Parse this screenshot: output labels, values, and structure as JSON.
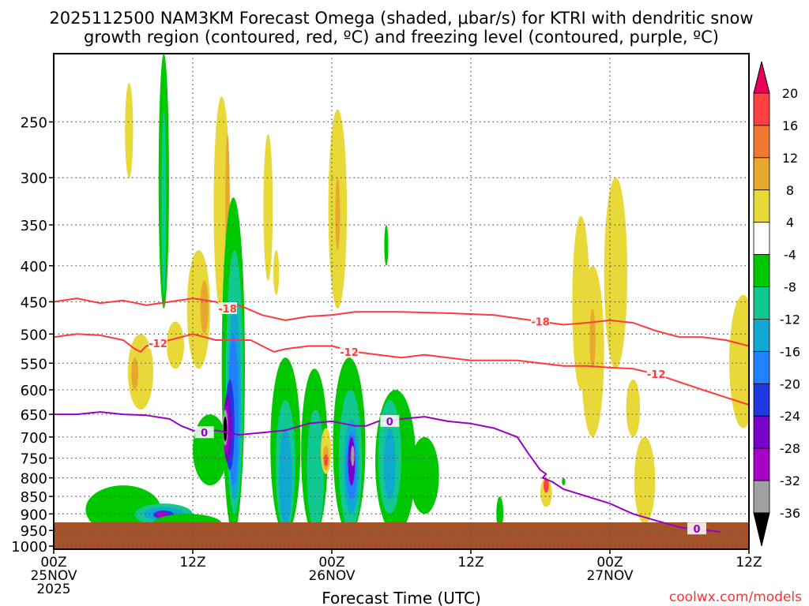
{
  "chart_data": {
    "type": "heatmap",
    "title_line1": "2025112500 NAM3KM Forecast Omega (shaded, μbar/s) for KTRI with dendritic snow",
    "title_line2": "growth region (contoured, red, ºC) and freezing level (contoured, purple, ºC)",
    "xlabel": "Forecast Time (UTC)",
    "credit": "coolwx.com/models",
    "x_range_hours": [
      0,
      60
    ],
    "y_range_hpa": [
      200,
      1010
    ],
    "y_ticks": [
      250,
      300,
      350,
      400,
      450,
      500,
      550,
      600,
      650,
      700,
      750,
      800,
      850,
      900,
      950,
      1000
    ],
    "x_ticks": [
      {
        "hour": 0,
        "l1": "00Z",
        "l2": "25NOV",
        "l3": "2025"
      },
      {
        "hour": 12,
        "l1": "12Z",
        "l2": "",
        "l3": ""
      },
      {
        "hour": 24,
        "l1": "00Z",
        "l2": "26NOV",
        "l3": ""
      },
      {
        "hour": 36,
        "l1": "12Z",
        "l2": "",
        "l3": ""
      },
      {
        "hour": 48,
        "l1": "00Z",
        "l2": "27NOV",
        "l3": ""
      },
      {
        "hour": 60,
        "l1": "12Z",
        "l2": "",
        "l3": ""
      }
    ],
    "colorbar": {
      "labels": [
        "20",
        "16",
        "12",
        "8",
        "4",
        "-4",
        "-8",
        "-12",
        "-16",
        "-20",
        "-24",
        "-28",
        "-32",
        "-36"
      ],
      "colors_top_to_bottom": [
        "#e8005a",
        "#ff4040",
        "#f07830",
        "#e8a830",
        "#e8d838",
        "#ffffff",
        "#00c800",
        "#10c890",
        "#10a8d0",
        "#2080ff",
        "#2038e0",
        "#7800c8",
        "#a800c8",
        "#a0a0a0",
        "#000000"
      ]
    },
    "omega_cells": [
      {
        "h": 6.5,
        "p1": 220,
        "p2": 300,
        "w": 0.7,
        "c": "#e8d838"
      },
      {
        "h": 9.5,
        "p1": 200,
        "p2": 460,
        "w": 0.9,
        "c": "#00c800"
      },
      {
        "h": 9.5,
        "p1": 240,
        "p2": 440,
        "w": 0.4,
        "c": "#10c890"
      },
      {
        "h": 7.5,
        "p1": 500,
        "p2": 640,
        "w": 2.2,
        "c": "#e8d838"
      },
      {
        "h": 7.0,
        "p1": 540,
        "p2": 600,
        "w": 0.6,
        "c": "#e8a830"
      },
      {
        "h": 10.5,
        "p1": 480,
        "p2": 560,
        "w": 1.5,
        "c": "#e8d838"
      },
      {
        "h": 12.5,
        "p1": 380,
        "p2": 560,
        "w": 2.0,
        "c": "#e8d838"
      },
      {
        "h": 13.0,
        "p1": 420,
        "p2": 500,
        "w": 0.7,
        "c": "#e8a830"
      },
      {
        "h": 14.5,
        "p1": 230,
        "p2": 470,
        "w": 1.4,
        "c": "#e8d838"
      },
      {
        "h": 15.0,
        "p1": 260,
        "p2": 440,
        "w": 0.4,
        "c": "#e8a830"
      },
      {
        "h": 18.5,
        "p1": 260,
        "p2": 420,
        "w": 0.8,
        "c": "#e8d838"
      },
      {
        "h": 19.2,
        "p1": 380,
        "p2": 440,
        "w": 0.5,
        "c": "#e8d838"
      },
      {
        "h": 13.5,
        "p1": 650,
        "p2": 820,
        "w": 3.0,
        "c": "#00c800"
      },
      {
        "h": 15.5,
        "p1": 320,
        "p2": 960,
        "w": 2.0,
        "c": "#00c800"
      },
      {
        "h": 15.6,
        "p1": 380,
        "p2": 900,
        "w": 1.5,
        "c": "#10c890"
      },
      {
        "h": 15.6,
        "p1": 450,
        "p2": 860,
        "w": 1.1,
        "c": "#10a8d0"
      },
      {
        "h": 15.5,
        "p1": 500,
        "p2": 820,
        "w": 0.9,
        "c": "#2080ff"
      },
      {
        "h": 15.2,
        "p1": 580,
        "p2": 780,
        "w": 0.8,
        "c": "#2038e0"
      },
      {
        "h": 15.0,
        "p1": 610,
        "p2": 760,
        "w": 0.7,
        "c": "#7800c8"
      },
      {
        "h": 14.9,
        "p1": 630,
        "p2": 740,
        "w": 0.55,
        "c": "#a800c8"
      },
      {
        "h": 14.8,
        "p1": 640,
        "p2": 720,
        "w": 0.45,
        "c": "#a0a0a0"
      },
      {
        "h": 14.8,
        "p1": 655,
        "p2": 710,
        "w": 0.32,
        "c": "#000000"
      },
      {
        "h": 20.0,
        "p1": 540,
        "p2": 960,
        "w": 2.6,
        "c": "#00c800"
      },
      {
        "h": 20.0,
        "p1": 620,
        "p2": 950,
        "w": 1.7,
        "c": "#10c890"
      },
      {
        "h": 20.0,
        "p1": 680,
        "p2": 940,
        "w": 1.1,
        "c": "#10a8d0"
      },
      {
        "h": 22.5,
        "p1": 560,
        "p2": 960,
        "w": 2.3,
        "c": "#00c800"
      },
      {
        "h": 22.6,
        "p1": 640,
        "p2": 950,
        "w": 1.5,
        "c": "#10c890"
      },
      {
        "h": 24.5,
        "p1": 240,
        "p2": 460,
        "w": 1.6,
        "c": "#e8d838"
      },
      {
        "h": 24.5,
        "p1": 300,
        "p2": 380,
        "w": 0.4,
        "c": "#e8a830"
      },
      {
        "h": 25.5,
        "p1": 540,
        "p2": 960,
        "w": 2.8,
        "c": "#00c800"
      },
      {
        "h": 25.6,
        "p1": 600,
        "p2": 950,
        "w": 2.0,
        "c": "#10c890"
      },
      {
        "h": 25.7,
        "p1": 660,
        "p2": 900,
        "w": 1.3,
        "c": "#10a8d0"
      },
      {
        "h": 25.7,
        "p1": 690,
        "p2": 860,
        "w": 0.9,
        "c": "#2080ff"
      },
      {
        "h": 25.7,
        "p1": 700,
        "p2": 820,
        "w": 0.6,
        "c": "#7800c8"
      },
      {
        "h": 25.8,
        "p1": 720,
        "p2": 770,
        "w": 0.3,
        "c": "#a0a0a0"
      },
      {
        "h": 23.5,
        "p1": 680,
        "p2": 790,
        "w": 0.9,
        "c": "#e8d838"
      },
      {
        "h": 23.5,
        "p1": 720,
        "p2": 780,
        "w": 0.55,
        "c": "#e8a830"
      },
      {
        "h": 23.5,
        "p1": 740,
        "p2": 770,
        "w": 0.3,
        "c": "#ff4040"
      },
      {
        "h": 29.5,
        "p1": 600,
        "p2": 960,
        "w": 3.5,
        "c": "#00c800"
      },
      {
        "h": 29.0,
        "p1": 620,
        "p2": 900,
        "w": 2.0,
        "c": "#10c890"
      },
      {
        "h": 29.0,
        "p1": 680,
        "p2": 860,
        "w": 1.0,
        "c": "#10a8d0"
      },
      {
        "h": 32.0,
        "p1": 700,
        "p2": 900,
        "w": 2.5,
        "c": "#00c800"
      },
      {
        "h": 28.7,
        "p1": 350,
        "p2": 400,
        "w": 0.35,
        "c": "#00c800"
      },
      {
        "h": 6.0,
        "p1": 820,
        "p2": 960,
        "w": 6.5,
        "c": "#00c800"
      },
      {
        "h": 9.5,
        "p1": 870,
        "p2": 935,
        "w": 5.0,
        "c": "#10c890"
      },
      {
        "h": 9.5,
        "p1": 880,
        "p2": 920,
        "w": 3.5,
        "c": "#10a8d0"
      },
      {
        "h": 9.5,
        "p1": 890,
        "p2": 915,
        "w": 1.8,
        "c": "#2038e0"
      },
      {
        "h": 9.3,
        "p1": 893,
        "p2": 910,
        "w": 1.0,
        "c": "#a800c8"
      },
      {
        "h": 11.5,
        "p1": 900,
        "p2": 960,
        "w": 6.0,
        "c": "#00c800"
      },
      {
        "h": 38.5,
        "p1": 850,
        "p2": 950,
        "w": 0.6,
        "c": "#00c800"
      },
      {
        "h": 42.5,
        "p1": 800,
        "p2": 880,
        "w": 1.0,
        "c": "#e8d838"
      },
      {
        "h": 42.5,
        "p1": 800,
        "p2": 840,
        "w": 0.45,
        "c": "#ff4040"
      },
      {
        "h": 44.0,
        "p1": 800,
        "p2": 820,
        "w": 0.3,
        "c": "#00c800"
      },
      {
        "h": 45.5,
        "p1": 340,
        "p2": 600,
        "w": 1.5,
        "c": "#e8d838"
      },
      {
        "h": 46.5,
        "p1": 400,
        "p2": 700,
        "w": 2.0,
        "c": "#e8d838"
      },
      {
        "h": 46.5,
        "p1": 460,
        "p2": 560,
        "w": 0.5,
        "c": "#e8a830"
      },
      {
        "h": 48.5,
        "p1": 300,
        "p2": 560,
        "w": 2.0,
        "c": "#e8d838"
      },
      {
        "h": 50.0,
        "p1": 580,
        "p2": 700,
        "w": 1.2,
        "c": "#e8d838"
      },
      {
        "h": 51.0,
        "p1": 700,
        "p2": 930,
        "w": 1.8,
        "c": "#e8d838"
      },
      {
        "h": 59.5,
        "p1": 440,
        "p2": 680,
        "w": 2.4,
        "c": "#e8d838"
      }
    ],
    "contours": [
      {
        "name": "-18",
        "color": "#ff3a3a",
        "width": 2,
        "label_hours": [
          15,
          42
        ],
        "points": [
          [
            0,
            450
          ],
          [
            2,
            445
          ],
          [
            4,
            452
          ],
          [
            6,
            448
          ],
          [
            8,
            455
          ],
          [
            10,
            450
          ],
          [
            12,
            445
          ],
          [
            14,
            450
          ],
          [
            15,
            460
          ],
          [
            16,
            455
          ],
          [
            18,
            470
          ],
          [
            20,
            478
          ],
          [
            22,
            472
          ],
          [
            24,
            470
          ],
          [
            26,
            465
          ],
          [
            30,
            465
          ],
          [
            34,
            467
          ],
          [
            38,
            470
          ],
          [
            42,
            480
          ],
          [
            44,
            485
          ],
          [
            46,
            482
          ],
          [
            48,
            478
          ],
          [
            50,
            482
          ],
          [
            52,
            495
          ],
          [
            54,
            505
          ],
          [
            56,
            505
          ],
          [
            58,
            510
          ],
          [
            60,
            520
          ]
        ]
      },
      {
        "name": "-12",
        "color": "#ff3a3a",
        "width": 2,
        "label_hours": [
          9,
          25.5,
          52
        ],
        "points": [
          [
            0,
            505
          ],
          [
            2,
            500
          ],
          [
            4,
            502
          ],
          [
            6,
            510
          ],
          [
            7,
            525
          ],
          [
            7.5,
            530
          ],
          [
            8,
            520
          ],
          [
            9,
            515
          ],
          [
            10,
            510
          ],
          [
            11,
            505
          ],
          [
            12,
            500
          ],
          [
            14,
            510
          ],
          [
            16,
            510
          ],
          [
            17,
            510
          ],
          [
            18,
            520
          ],
          [
            19,
            530
          ],
          [
            20,
            525
          ],
          [
            22,
            520
          ],
          [
            24,
            520
          ],
          [
            26,
            530
          ],
          [
            28,
            535
          ],
          [
            30,
            540
          ],
          [
            32,
            535
          ],
          [
            34,
            540
          ],
          [
            36,
            545
          ],
          [
            38,
            545
          ],
          [
            40,
            545
          ],
          [
            42,
            550
          ],
          [
            44,
            555
          ],
          [
            46,
            555
          ],
          [
            48,
            558
          ],
          [
            50,
            560
          ],
          [
            52,
            570
          ],
          [
            54,
            585
          ],
          [
            56,
            600
          ],
          [
            58,
            615
          ],
          [
            60,
            630
          ]
        ]
      },
      {
        "name": "0",
        "color": "#9800c8",
        "width": 2,
        "label_hours": [
          13,
          29,
          55.5
        ],
        "points": [
          [
            0,
            650
          ],
          [
            2,
            650
          ],
          [
            4,
            645
          ],
          [
            6,
            650
          ],
          [
            8,
            652
          ],
          [
            10,
            660
          ],
          [
            11,
            675
          ],
          [
            12,
            685
          ],
          [
            13,
            690
          ],
          [
            14,
            685
          ],
          [
            15,
            690
          ],
          [
            16,
            695
          ],
          [
            18,
            690
          ],
          [
            20,
            685
          ],
          [
            22,
            670
          ],
          [
            24,
            665
          ],
          [
            25,
            670
          ],
          [
            26,
            675
          ],
          [
            27,
            675
          ],
          [
            28,
            665
          ],
          [
            30,
            660
          ],
          [
            32,
            655
          ],
          [
            34,
            665
          ],
          [
            36,
            670
          ],
          [
            38,
            680
          ],
          [
            40,
            700
          ],
          [
            41,
            740
          ],
          [
            42,
            780
          ],
          [
            42.5,
            790
          ],
          [
            42.2,
            800
          ],
          [
            43,
            810
          ],
          [
            44,
            830
          ],
          [
            46,
            850
          ],
          [
            48,
            870
          ],
          [
            50,
            900
          ],
          [
            52,
            920
          ],
          [
            54,
            940
          ],
          [
            55,
            945
          ],
          [
            56,
            948
          ],
          [
            57,
            952
          ],
          [
            57.5,
            955
          ]
        ]
      }
    ]
  }
}
